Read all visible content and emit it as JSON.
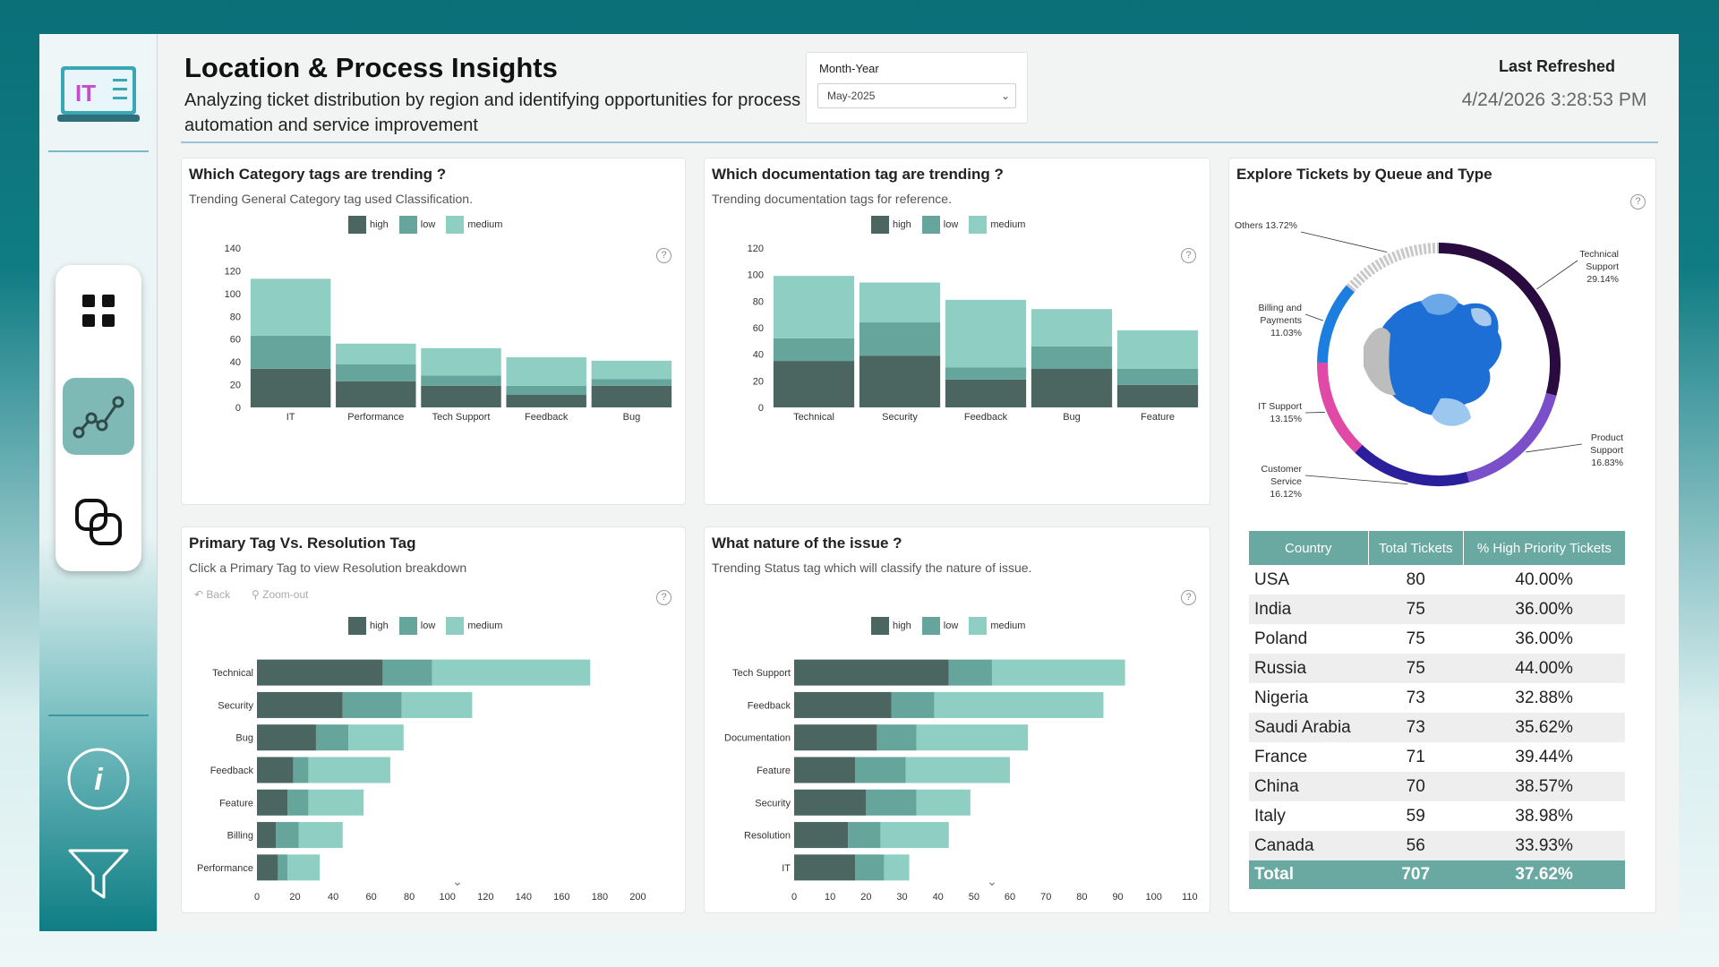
{
  "header": {
    "title": "Location & Process Insights",
    "subtitle": "Analyzing ticket distribution by region and identifying opportunities for process automation and service improvement",
    "slicer_label": "Month-Year",
    "slicer_value": "May-2025",
    "refresh_label": "Last Refreshed",
    "refresh_time": "4/24/2026 3:28:53 PM"
  },
  "logo": {
    "text": "IT"
  },
  "colors": {
    "high": "#4b6661",
    "low": "#66a59c",
    "medium": "#8fcfc3",
    "accent": "#6aa9a2"
  },
  "sidebar": {
    "icons": [
      "grid-icon",
      "analytics-icon",
      "links-icon",
      "info-icon",
      "filter-icon"
    ]
  },
  "legend": {
    "high": "high",
    "low": "low",
    "medium": "medium"
  },
  "category_chart": {
    "title": "Which Category tags are trending ?",
    "subtitle": "Trending General Category tag used Classification.",
    "chart_data": {
      "type": "bar",
      "stacked": true,
      "categories": [
        "IT",
        "Performance",
        "Tech Support",
        "Feedback",
        "Bug"
      ],
      "yticks": [
        0,
        20,
        40,
        60,
        80,
        100,
        120,
        140
      ],
      "ylim": [
        0,
        140
      ],
      "series": [
        {
          "name": "high",
          "values": [
            34,
            23,
            19,
            11,
            19
          ]
        },
        {
          "name": "low",
          "values": [
            29,
            15,
            9,
            8,
            6
          ]
        },
        {
          "name": "medium",
          "values": [
            50,
            18,
            24,
            25,
            16
          ]
        }
      ]
    }
  },
  "doc_chart": {
    "title": "Which documentation tag are trending ?",
    "subtitle": "Trending documentation tags for reference.",
    "chart_data": {
      "type": "bar",
      "stacked": true,
      "categories": [
        "Technical",
        "Security",
        "Feedback",
        "Bug",
        "Feature"
      ],
      "yticks": [
        0,
        20,
        40,
        60,
        80,
        100,
        120
      ],
      "ylim": [
        0,
        120
      ],
      "series": [
        {
          "name": "high",
          "values": [
            35,
            39,
            21,
            29,
            17
          ]
        },
        {
          "name": "low",
          "values": [
            17,
            25,
            9,
            17,
            12
          ]
        },
        {
          "name": "medium",
          "values": [
            47,
            30,
            51,
            28,
            29
          ]
        }
      ]
    }
  },
  "primary_chart": {
    "title": "Primary Tag Vs. Resolution Tag",
    "subtitle": "Click a Primary Tag to view Resolution breakdown",
    "back": "Back",
    "zoom": "Zoom-out",
    "chart_data": {
      "type": "bar",
      "orientation": "horizontal",
      "stacked": true,
      "categories": [
        "Technical",
        "Security",
        "Bug",
        "Feedback",
        "Feature",
        "Billing",
        "Performance"
      ],
      "xticks": [
        0,
        20,
        40,
        60,
        80,
        100,
        120,
        140,
        160,
        180,
        200
      ],
      "xlim": [
        0,
        220
      ],
      "series": [
        {
          "name": "high",
          "values": [
            66,
            45,
            31,
            19,
            16,
            10,
            11
          ]
        },
        {
          "name": "low",
          "values": [
            26,
            31,
            17,
            8,
            11,
            12,
            5
          ]
        },
        {
          "name": "medium",
          "values": [
            83,
            37,
            29,
            43,
            29,
            23,
            17
          ]
        }
      ]
    }
  },
  "nature_chart": {
    "title": "What nature of the issue ?",
    "subtitle": "Trending Status tag which will classify the nature of issue.",
    "chart_data": {
      "type": "bar",
      "orientation": "horizontal",
      "stacked": true,
      "categories": [
        "Tech Support",
        "Feedback",
        "Documentation",
        "Feature",
        "Security",
        "Resolution",
        "IT"
      ],
      "xticks": [
        0,
        10,
        20,
        30,
        40,
        50,
        60,
        70,
        80,
        90,
        100,
        110
      ],
      "xlim": [
        0,
        115
      ],
      "series": [
        {
          "name": "high",
          "values": [
            43,
            27,
            23,
            17,
            20,
            15,
            17
          ]
        },
        {
          "name": "low",
          "values": [
            12,
            12,
            11,
            14,
            14,
            9,
            8
          ]
        },
        {
          "name": "medium",
          "values": [
            37,
            47,
            31,
            29,
            15,
            19,
            7
          ]
        }
      ]
    }
  },
  "queue_chart": {
    "title": "Explore Tickets by Queue and Type",
    "chart_data": {
      "type": "pie",
      "variant": "donut",
      "slices": [
        {
          "label_lines": [
            "Technical",
            "Support",
            "29.14%"
          ],
          "value": 29.14,
          "color": "#2a0b3f"
        },
        {
          "label_lines": [
            "Product",
            "Support",
            "16.83%"
          ],
          "value": 16.83,
          "color": "#7b4fc9"
        },
        {
          "label_lines": [
            "Customer",
            "Service",
            "16.12%"
          ],
          "value": 16.12,
          "color": "#2b1f9c"
        },
        {
          "label_lines": [
            "IT Support",
            "13.15%"
          ],
          "value": 13.15,
          "color": "#e04aa6"
        },
        {
          "label_lines": [
            "Billing and",
            "Payments",
            "11.03%"
          ],
          "value": 11.03,
          "color": "#1c7fe0"
        },
        {
          "label_lines": [
            "Others 13.72%"
          ],
          "value": 13.72,
          "color": "#c9c9c9"
        }
      ]
    }
  },
  "country_table": {
    "headers": [
      "Country",
      "Total Tickets",
      "% High Priority Tickets"
    ],
    "rows": [
      [
        "USA",
        "80",
        "40.00%"
      ],
      [
        "India",
        "75",
        "36.00%"
      ],
      [
        "Poland",
        "75",
        "36.00%"
      ],
      [
        "Russia",
        "75",
        "44.00%"
      ],
      [
        "Nigeria",
        "73",
        "32.88%"
      ],
      [
        "Saudi Arabia",
        "73",
        "35.62%"
      ],
      [
        "France",
        "71",
        "39.44%"
      ],
      [
        "China",
        "70",
        "38.57%"
      ],
      [
        "Italy",
        "59",
        "38.98%"
      ],
      [
        "Canada",
        "56",
        "33.93%"
      ]
    ],
    "total": [
      "Total",
      "707",
      "37.62%"
    ]
  }
}
